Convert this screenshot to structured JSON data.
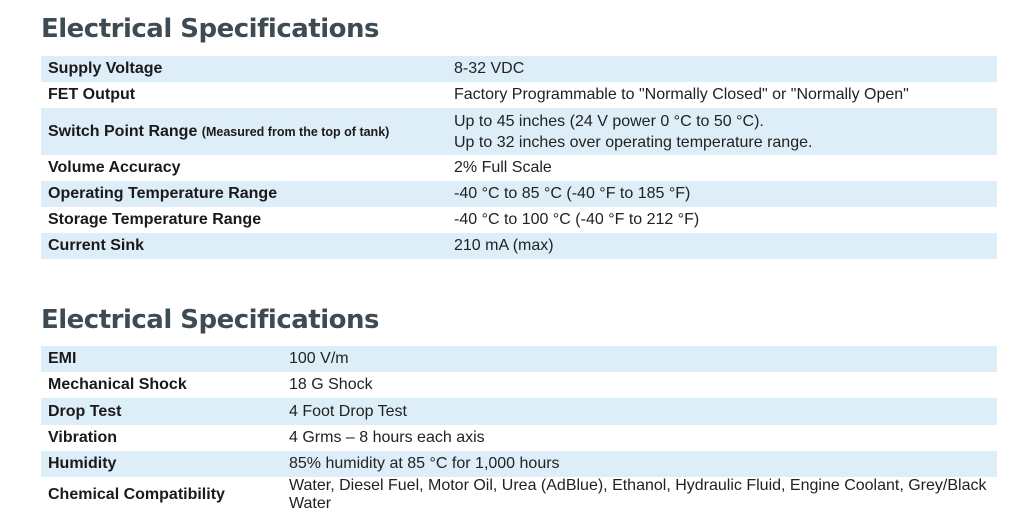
{
  "section1": {
    "title": "Electrical Specifications",
    "rows": [
      {
        "label": "Supply Voltage",
        "value": "8-32 VDC"
      },
      {
        "label": "FET Output",
        "value": "Factory Programmable to \"Normally Closed\" or \"Normally Open\""
      },
      {
        "label": "Switch Point Range",
        "note": "(Measured from the top of tank)",
        "value_line1": "Up to 45 inches (24 V power 0 °C to 50 °C).",
        "value_line2": "Up to 32 inches over operating temperature range."
      },
      {
        "label": "Volume Accuracy",
        "value": "2% Full Scale"
      },
      {
        "label": "Operating Temperature Range",
        "value": "-40 °C to 85 °C (-40 °F to 185 °F)"
      },
      {
        "label": "Storage Temperature Range",
        "value": "-40 °C to 100 °C (-40 °F to 212 °F)"
      },
      {
        "label": "Current Sink",
        "value": "210 mA (max)"
      }
    ]
  },
  "section2": {
    "title": "Electrical Specifications",
    "rows": [
      {
        "label": "EMI",
        "value": "100 V/m"
      },
      {
        "label": "Mechanical Shock",
        "value": "18 G Shock"
      },
      {
        "label": "Drop Test",
        "value": "4 Foot Drop Test"
      },
      {
        "label": "Vibration",
        "value": "4 Grms – 8 hours each axis"
      },
      {
        "label": "Humidity",
        "value": "85% humidity at 85 °C for 1,000 hours"
      },
      {
        "label": "Chemical Compatibility",
        "value": "Water, Diesel Fuel, Motor Oil, Urea (AdBlue), Ethanol, Hydraulic Fluid, Engine Coolant, Grey/Black Water"
      }
    ]
  },
  "colors": {
    "row_shade": "#ddeef8",
    "title": "#3f4b52",
    "text": "#1a1a1a"
  }
}
